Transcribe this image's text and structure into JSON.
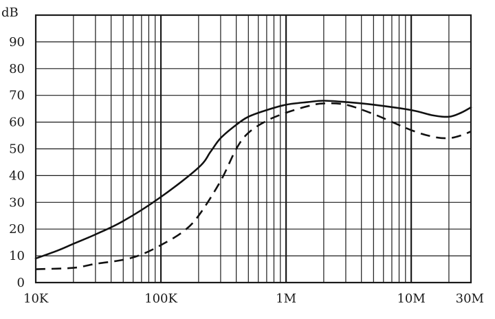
{
  "chart_data": {
    "type": "line",
    "x_scale": "log",
    "xlim": [
      10000,
      30000000
    ],
    "ylim": [
      0,
      100
    ],
    "grid": true,
    "ylabel": "dB",
    "x_ticks": [
      {
        "value": 10000,
        "label": "10K"
      },
      {
        "value": 100000,
        "label": "100K"
      },
      {
        "value": 1000000,
        "label": "1M"
      },
      {
        "value": 10000000,
        "label": "10M"
      },
      {
        "value": 30000000,
        "label": "30M"
      }
    ],
    "y_ticks": [
      0,
      10,
      20,
      30,
      40,
      50,
      60,
      70,
      80,
      90
    ],
    "series": [
      {
        "style": "solid",
        "points": [
          [
            10000,
            9
          ],
          [
            15000,
            12
          ],
          [
            20000,
            14.5
          ],
          [
            30000,
            18
          ],
          [
            50000,
            23
          ],
          [
            100000,
            32
          ],
          [
            200000,
            43
          ],
          [
            250000,
            49
          ],
          [
            300000,
            54
          ],
          [
            400000,
            59
          ],
          [
            500000,
            62
          ],
          [
            700000,
            64.5
          ],
          [
            1000000,
            66.5
          ],
          [
            1500000,
            67.5
          ],
          [
            2000000,
            68
          ],
          [
            3000000,
            67.5
          ],
          [
            5000000,
            66.5
          ],
          [
            10000000,
            64.5
          ],
          [
            15000000,
            62.5
          ],
          [
            20000000,
            62
          ],
          [
            25000000,
            63.5
          ],
          [
            30000000,
            65.5
          ]
        ]
      },
      {
        "style": "dashed",
        "points": [
          [
            10000,
            5
          ],
          [
            20000,
            5.5
          ],
          [
            30000,
            7
          ],
          [
            50000,
            8.5
          ],
          [
            70000,
            10.5
          ],
          [
            100000,
            14
          ],
          [
            150000,
            19
          ],
          [
            200000,
            25
          ],
          [
            300000,
            38
          ],
          [
            400000,
            50
          ],
          [
            500000,
            56
          ],
          [
            700000,
            60.5
          ],
          [
            1000000,
            63.5
          ],
          [
            1500000,
            66
          ],
          [
            2000000,
            67
          ],
          [
            3000000,
            66.5
          ],
          [
            5000000,
            63
          ],
          [
            10000000,
            57
          ],
          [
            15000000,
            54.5
          ],
          [
            20000000,
            54
          ],
          [
            25000000,
            55
          ],
          [
            30000000,
            56.5
          ]
        ]
      }
    ]
  }
}
